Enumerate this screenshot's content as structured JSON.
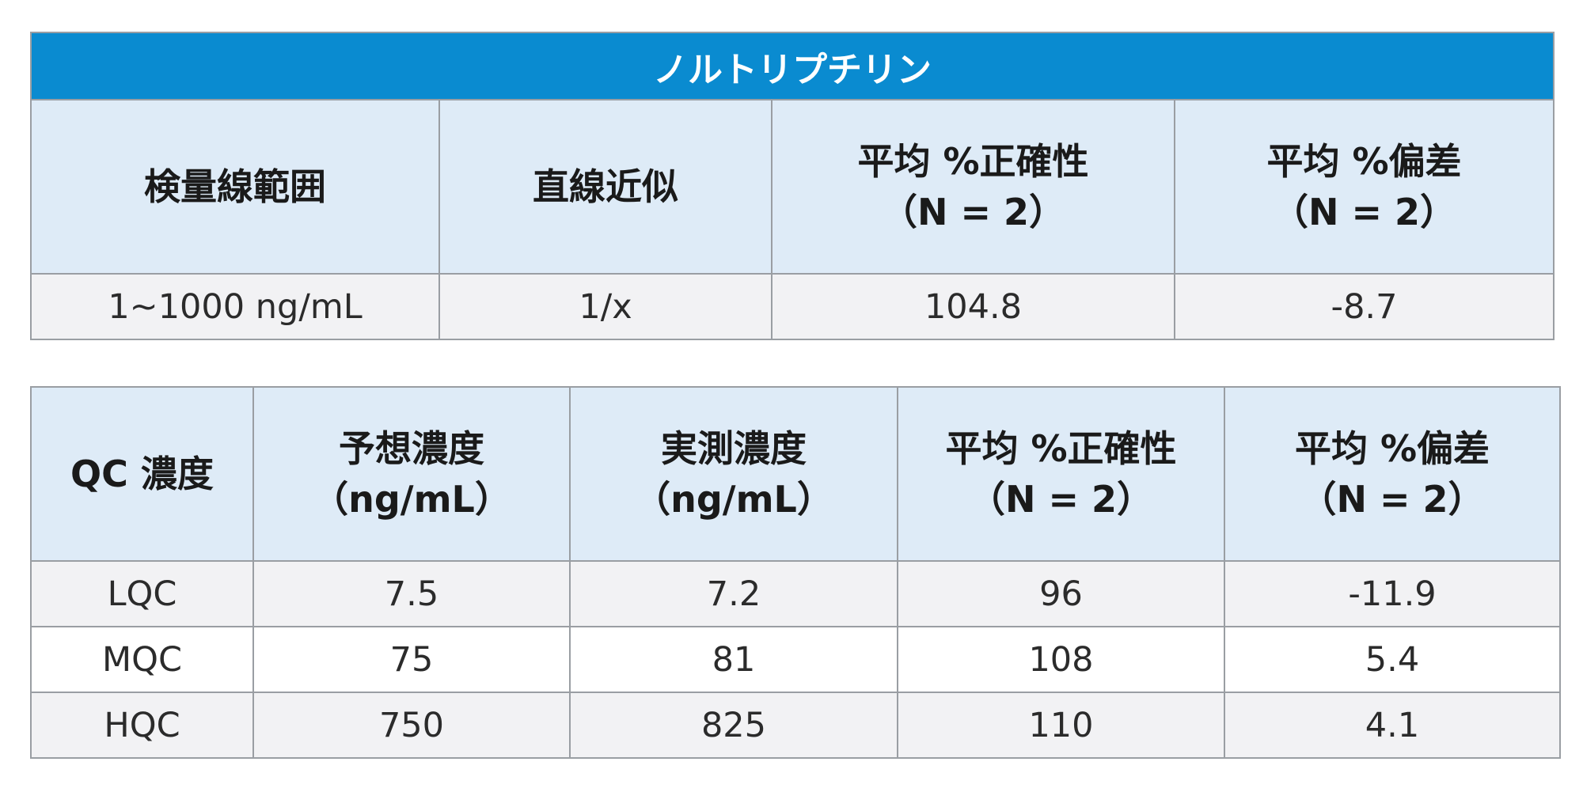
{
  "table1": {
    "title": "ノルトリプチリン",
    "headers": [
      [
        "検量線範囲"
      ],
      [
        "直線近似"
      ],
      [
        "平均 %正確性",
        "（N = 2）"
      ],
      [
        "平均 %偏差",
        "（N = 2）"
      ]
    ],
    "rows": [
      [
        "1~1000 ng/mL",
        "1/x",
        "104.8",
        "-8.7"
      ]
    ]
  },
  "table2": {
    "headers": [
      [
        "QC 濃度"
      ],
      [
        "予想濃度",
        "（ng/mL）"
      ],
      [
        "実測濃度",
        "（ng/mL）"
      ],
      [
        "平均 %正確性",
        "（N = 2）"
      ],
      [
        "平均 %偏差",
        "（N = 2）"
      ]
    ],
    "rows": [
      [
        "LQC",
        "7.5",
        "7.2",
        "96",
        "-11.9"
      ],
      [
        "MQC",
        "75",
        "81",
        "108",
        "5.4"
      ],
      [
        "HQC",
        "750",
        "825",
        "110",
        "4.1"
      ]
    ]
  },
  "colors": {
    "title_bar": "#0a8bd0",
    "header_bg": "#deebf7",
    "shaded_row": "#f2f2f4",
    "border": "#9a9ea3"
  }
}
